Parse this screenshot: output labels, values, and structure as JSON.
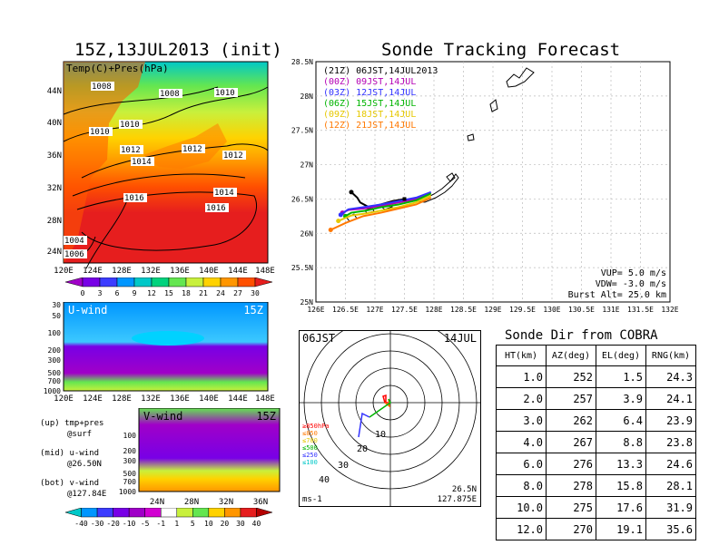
{
  "left": {
    "main_title": "15Z,13JUL2013 (init)",
    "map_label": "Temp(C)+Pres(hPa)",
    "lat_labels": [
      "44N",
      "40N",
      "36N",
      "32N",
      "28N",
      "24N"
    ],
    "lon_labels": [
      "120E",
      "124E",
      "128E",
      "132E",
      "136E",
      "140E",
      "144E",
      "148E"
    ],
    "isobar_labels": [
      "1008",
      "1008",
      "1010",
      "1010",
      "1010",
      "1012",
      "1012",
      "1014",
      "1012",
      "1014",
      "1016",
      "1016",
      "1004",
      "1006"
    ],
    "temp_scale": [
      "0",
      "3",
      "6",
      "9",
      "12",
      "15",
      "18",
      "21",
      "24",
      "27",
      "30"
    ],
    "temp_colors": [
      "#a000c8",
      "#7800e6",
      "#3c3cff",
      "#0096ff",
      "#00c8c8",
      "#00d27d",
      "#64e650",
      "#c8f03c",
      "#ffd200",
      "#ff9600",
      "#ff5000",
      "#e61e1e"
    ],
    "uwind": {
      "label": "U-wind",
      "time": "15Z",
      "levels": [
        "30",
        "50",
        "100",
        "200",
        "300",
        "500",
        "700",
        "1000"
      ]
    },
    "vwind": {
      "label": "V-wind",
      "time": "15Z",
      "levels": [
        "100",
        "200",
        "300",
        "500",
        "700",
        "1000"
      ],
      "lat_labels": [
        "24N",
        "28N",
        "32N",
        "36N"
      ]
    },
    "legend_notes": [
      {
        "a": "(up) tmp+pres",
        "b": "@surf"
      },
      {
        "a": "(mid) u-wind",
        "b": "@26.50N"
      },
      {
        "a": "(bot) v-wind",
        "b": "@127.84E"
      }
    ],
    "wind_scale": [
      "-40",
      "-30",
      "-20",
      "-10",
      "-5",
      "-1",
      "1",
      "5",
      "10",
      "20",
      "30",
      "40"
    ],
    "wind_colors": [
      "#00c8c8",
      "#0096ff",
      "#3c3cff",
      "#7800e6",
      "#a000c8",
      "#d200d2",
      "#ffffff",
      "#c8f03c",
      "#64e650",
      "#ffd200",
      "#ff9600",
      "#e61e1e",
      "#b40000"
    ]
  },
  "tracking": {
    "title": "Sonde Tracking Forecast",
    "lat_labels": [
      "28.5N",
      "28N",
      "27.5N",
      "27N",
      "26.5N",
      "26N",
      "25.5N",
      "25N"
    ],
    "lon_labels": [
      "126E",
      "126.5E",
      "127E",
      "127.5E",
      "128E",
      "128.5E",
      "129E",
      "129.5E",
      "130E",
      "130.5E",
      "131E",
      "131.5E",
      "132E"
    ],
    "legend": [
      {
        "text": "(21Z) 06JST,14JUL2013",
        "color": "#000000"
      },
      {
        "text": "(00Z) 09JST,14JUL",
        "color": "#b400b4"
      },
      {
        "text": "(03Z) 12JST,14JUL",
        "color": "#3232ff"
      },
      {
        "text": "(06Z) 15JST,14JUL",
        "color": "#00b400"
      },
      {
        "text": "(09Z) 18JST,14JUL",
        "color": "#e6c800"
      },
      {
        "text": "(12Z) 21JST,14JUL",
        "color": "#ff7800"
      }
    ],
    "params": [
      "VUP= 5.0 m/s",
      "VDW= -3.0 m/s",
      "Burst Alt= 25.0 km"
    ]
  },
  "chart_data": [
    {
      "type": "line",
      "title": "Sonde Tracking Forecast",
      "xlim": [
        126,
        132
      ],
      "ylim": [
        25,
        28.5
      ],
      "release": [
        127.5,
        26.5
      ],
      "series": [
        {
          "name": "(21Z) 06JST,14JUL2013",
          "x": [
            127.5,
            127.3,
            127.1,
            126.9,
            126.75,
            126.7,
            126.6
          ],
          "y": [
            26.5,
            26.47,
            26.42,
            26.38,
            26.45,
            26.52,
            26.6
          ]
        },
        {
          "name": "(00Z) 09JST,14JUL",
          "x": [
            127.95,
            127.7,
            127.4,
            127.1,
            126.8,
            126.55,
            126.45
          ],
          "y": [
            26.58,
            26.5,
            26.45,
            26.4,
            26.36,
            26.34,
            26.3
          ]
        },
        {
          "name": "(03Z) 12JST,14JUL",
          "x": [
            127.95,
            127.7,
            127.4,
            127.1,
            126.8,
            126.55,
            126.42
          ],
          "y": [
            26.6,
            26.52,
            26.47,
            26.42,
            26.38,
            26.35,
            26.27
          ]
        },
        {
          "name": "(06Z) 15JST,14JUL",
          "x": [
            127.95,
            127.7,
            127.4,
            127.1,
            126.85,
            126.6,
            126.5
          ],
          "y": [
            26.58,
            26.48,
            26.42,
            26.38,
            26.33,
            26.3,
            26.25
          ]
        },
        {
          "name": "(09Z) 18JST,14JUL",
          "x": [
            127.95,
            127.7,
            127.4,
            127.1,
            126.85,
            126.6,
            126.38
          ],
          "y": [
            26.55,
            26.45,
            26.38,
            26.33,
            26.29,
            26.26,
            26.18
          ]
        },
        {
          "name": "(12Z) 21JST,14JUL",
          "x": [
            127.95,
            127.7,
            127.4,
            127.1,
            126.8,
            126.5,
            126.25
          ],
          "y": [
            26.52,
            26.42,
            26.36,
            26.3,
            26.25,
            26.15,
            26.05
          ]
        }
      ]
    },
    {
      "type": "table",
      "title": "Sonde Dir from COBRA",
      "columns": [
        "HT(km)",
        "AZ(deg)",
        "EL(deg)",
        "RNG(km)"
      ],
      "rows": [
        [
          "1.0",
          "252",
          "1.5",
          "24.3"
        ],
        [
          "2.0",
          "257",
          "3.9",
          "24.1"
        ],
        [
          "3.0",
          "262",
          "6.4",
          "23.9"
        ],
        [
          "4.0",
          "267",
          "8.8",
          "23.8"
        ],
        [
          "6.0",
          "276",
          "13.3",
          "24.6"
        ],
        [
          "8.0",
          "278",
          "15.8",
          "28.1"
        ],
        [
          "10.0",
          "275",
          "17.6",
          "31.9"
        ],
        [
          "12.0",
          "270",
          "19.1",
          "35.6"
        ]
      ]
    }
  ],
  "hodo": {
    "left_label": "06JST",
    "right_label": "14JUL",
    "loc_lat": "26.5N",
    "loc_lon": "127.875E",
    "unit": "ms-1",
    "pressure_labels": [
      {
        "text": "≥850hPa",
        "color": "#ff0000"
      },
      {
        "text": "≤850",
        "color": "#ff7800"
      },
      {
        "text": "≤700",
        "color": "#e6c800"
      },
      {
        "text": "≤500",
        "color": "#00b400"
      },
      {
        "text": "≤250",
        "color": "#3232ff"
      },
      {
        "text": "≤100",
        "color": "#00c8c8"
      }
    ],
    "ring_labels": [
      "10",
      "20",
      "30",
      "40"
    ]
  }
}
